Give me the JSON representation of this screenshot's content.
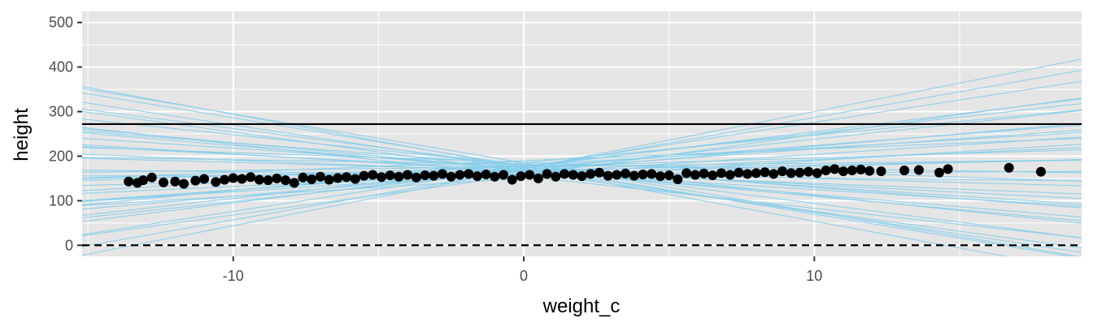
{
  "chart_data": {
    "type": "scatter",
    "xlabel": "weight_c",
    "ylabel": "height",
    "xlim": [
      -15.2,
      19.2
    ],
    "ylim": [
      -25,
      525
    ],
    "x_ticks": [
      -10,
      0,
      10
    ],
    "x_tick_labels": [
      "-10",
      "0",
      "10"
    ],
    "y_ticks": [
      0,
      100,
      200,
      300,
      400,
      500
    ],
    "y_tick_labels": [
      "0",
      "100",
      "200",
      "300",
      "400",
      "500"
    ],
    "grid": true,
    "background": "#e5e5e5",
    "colors": {
      "points": "#000000",
      "prior_lines": "#87ceeb",
      "reference_lines": "#000000",
      "grid": "#ffffff"
    },
    "points": [
      [
        -13.6,
        143
      ],
      [
        -13.3,
        140
      ],
      [
        -13.1,
        146
      ],
      [
        -12.8,
        152
      ],
      [
        -12.4,
        141
      ],
      [
        -12.0,
        143
      ],
      [
        -11.7,
        138
      ],
      [
        -11.3,
        145
      ],
      [
        -11.0,
        149
      ],
      [
        -10.6,
        142
      ],
      [
        -10.3,
        147
      ],
      [
        -10.0,
        151
      ],
      [
        -9.7,
        149
      ],
      [
        -9.4,
        153
      ],
      [
        -9.1,
        147
      ],
      [
        -8.8,
        146
      ],
      [
        -8.5,
        150
      ],
      [
        -8.2,
        146
      ],
      [
        -7.9,
        140
      ],
      [
        -7.6,
        152
      ],
      [
        -7.3,
        148
      ],
      [
        -7.0,
        154
      ],
      [
        -6.7,
        147
      ],
      [
        -6.4,
        151
      ],
      [
        -6.1,
        153
      ],
      [
        -5.8,
        149
      ],
      [
        -5.5,
        156
      ],
      [
        -5.2,
        158
      ],
      [
        -4.9,
        153
      ],
      [
        -4.6,
        157
      ],
      [
        -4.3,
        154
      ],
      [
        -4.0,
        158
      ],
      [
        -3.7,
        152
      ],
      [
        -3.4,
        157
      ],
      [
        -3.1,
        156
      ],
      [
        -2.8,
        160
      ],
      [
        -2.5,
        154
      ],
      [
        -2.2,
        158
      ],
      [
        -1.9,
        160
      ],
      [
        -1.6,
        155
      ],
      [
        -1.3,
        159
      ],
      [
        -1.0,
        154
      ],
      [
        -0.7,
        158
      ],
      [
        -0.4,
        147
      ],
      [
        -0.1,
        155
      ],
      [
        0.2,
        158
      ],
      [
        0.5,
        150
      ],
      [
        0.8,
        160
      ],
      [
        1.1,
        154
      ],
      [
        1.4,
        160
      ],
      [
        1.7,
        158
      ],
      [
        2.0,
        155
      ],
      [
        2.3,
        160
      ],
      [
        2.6,
        163
      ],
      [
        2.9,
        156
      ],
      [
        3.2,
        158
      ],
      [
        3.5,
        161
      ],
      [
        3.8,
        156
      ],
      [
        4.1,
        159
      ],
      [
        4.4,
        160
      ],
      [
        4.7,
        155
      ],
      [
        5.0,
        157
      ],
      [
        5.3,
        148
      ],
      [
        5.6,
        162
      ],
      [
        5.9,
        158
      ],
      [
        6.2,
        161
      ],
      [
        6.5,
        157
      ],
      [
        6.8,
        162
      ],
      [
        7.1,
        158
      ],
      [
        7.4,
        163
      ],
      [
        7.7,
        160
      ],
      [
        8.0,
        162
      ],
      [
        8.3,
        164
      ],
      [
        8.6,
        160
      ],
      [
        8.9,
        166
      ],
      [
        9.2,
        162
      ],
      [
        9.5,
        163
      ],
      [
        9.8,
        165
      ],
      [
        10.1,
        162
      ],
      [
        10.4,
        168
      ],
      [
        10.7,
        171
      ],
      [
        11.0,
        166
      ],
      [
        11.3,
        168
      ],
      [
        11.6,
        170
      ],
      [
        11.9,
        167
      ],
      [
        12.3,
        166
      ],
      [
        13.1,
        168
      ],
      [
        13.6,
        169
      ],
      [
        14.3,
        163
      ],
      [
        14.6,
        171
      ],
      [
        16.7,
        174
      ],
      [
        17.8,
        165
      ]
    ],
    "reference_lines": [
      {
        "y": 0,
        "style": "dashed"
      },
      {
        "y": 272,
        "style": "solid"
      }
    ],
    "prior_lines": [
      {
        "intercept": 178,
        "slope": -8.4
      },
      {
        "intercept": 178,
        "slope": -10.8
      },
      {
        "intercept": 172,
        "slope": 12.8
      },
      {
        "intercept": 176,
        "slope": 10.0
      },
      {
        "intercept": 168,
        "slope": 7.0
      },
      {
        "intercept": 185,
        "slope": 6.2
      },
      {
        "intercept": 174,
        "slope": 5.0
      },
      {
        "intercept": 180,
        "slope": 3.8
      },
      {
        "intercept": 162,
        "slope": 4.2
      },
      {
        "intercept": 176,
        "slope": 2.0
      },
      {
        "intercept": 168,
        "slope": -1.8
      },
      {
        "intercept": 150,
        "slope": 4.0
      },
      {
        "intercept": 160,
        "slope": 0.3
      },
      {
        "intercept": 165,
        "slope": -2.6
      },
      {
        "intercept": 175,
        "slope": -4.3
      },
      {
        "intercept": 180,
        "slope": -5.0
      },
      {
        "intercept": 170,
        "slope": -6.0
      },
      {
        "intercept": 155,
        "slope": -7.2
      },
      {
        "intercept": 158,
        "slope": 9.0
      },
      {
        "intercept": 172,
        "slope": 11.5
      },
      {
        "intercept": 165,
        "slope": -8.9
      },
      {
        "intercept": 185,
        "slope": -11.0
      },
      {
        "intercept": 175,
        "slope": 8.0
      },
      {
        "intercept": 168,
        "slope": 1.2
      },
      {
        "intercept": 170,
        "slope": -3.4
      },
      {
        "intercept": 182,
        "slope": -1.0
      },
      {
        "intercept": 162,
        "slope": 3.0
      },
      {
        "intercept": 178,
        "slope": 7.3
      },
      {
        "intercept": 169,
        "slope": -5.5
      },
      {
        "intercept": 158,
        "slope": -0.7
      },
      {
        "intercept": 190,
        "slope": 2.6
      },
      {
        "intercept": 172,
        "slope": -9.8
      },
      {
        "intercept": 166,
        "slope": 5.6
      },
      {
        "intercept": 174,
        "slope": -12.0
      },
      {
        "intercept": 160,
        "slope": 1.7
      },
      {
        "intercept": 180,
        "slope": -6.8
      },
      {
        "intercept": 170,
        "slope": 4.6
      },
      {
        "intercept": 165,
        "slope": -4.0
      },
      {
        "intercept": 176,
        "slope": 0.8
      },
      {
        "intercept": 186,
        "slope": -2.2
      }
    ]
  }
}
